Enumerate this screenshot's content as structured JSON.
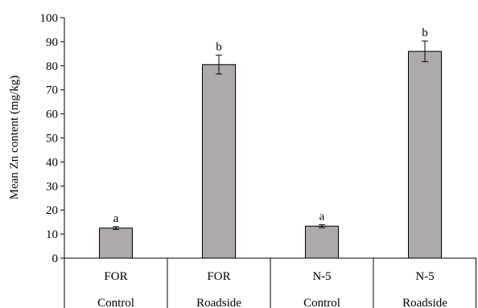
{
  "chart_data": {
    "type": "bar",
    "title": "",
    "xlabel": "",
    "ylabel": "Mean Zn content (mg/kg)",
    "ylim": [
      0,
      100
    ],
    "yticks": [
      0,
      10,
      20,
      30,
      40,
      50,
      60,
      70,
      80,
      90,
      100
    ],
    "grid": false,
    "legend": "none",
    "bar_color": "#aeaaaa",
    "categories": [
      {
        "name": "FOR",
        "group": "Control"
      },
      {
        "name": "FOR",
        "group": "Roadside"
      },
      {
        "name": "N-5",
        "group": "Control"
      },
      {
        "name": "N-5",
        "group": "Roadside"
      }
    ],
    "values": [
      12.5,
      80.5,
      13.3,
      86
    ],
    "errors": [
      0.6,
      3.9,
      0.6,
      4.3
    ],
    "significance": [
      "a",
      "b",
      "a",
      "b"
    ]
  }
}
